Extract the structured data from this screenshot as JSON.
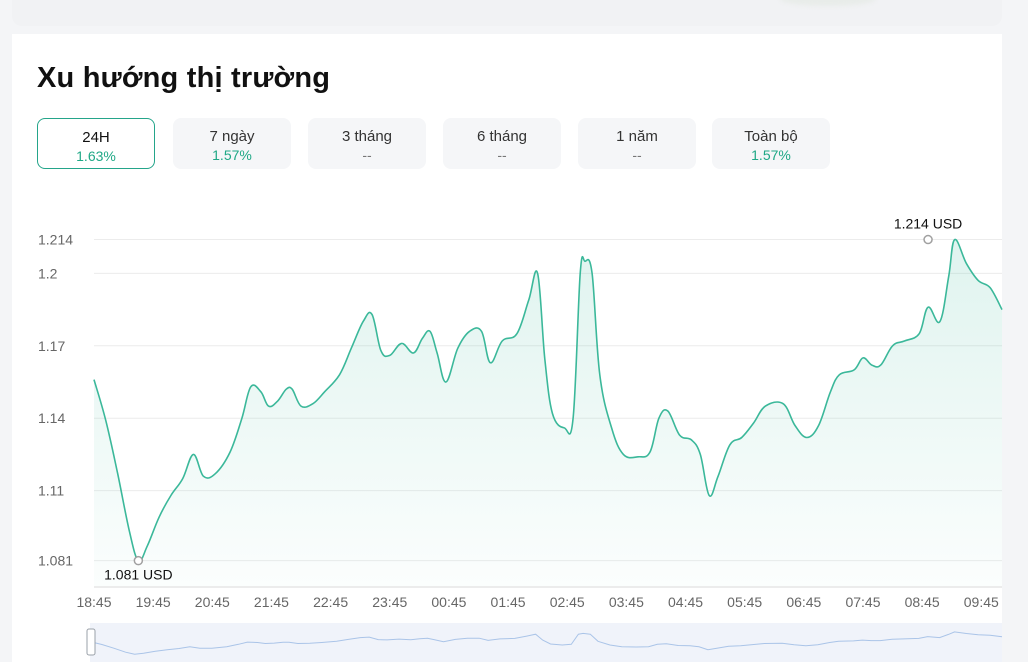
{
  "title": "Xu hướng thị trường",
  "tabs": [
    {
      "label": "24H",
      "value": "1.63%",
      "active": true
    },
    {
      "label": "7 ngày",
      "value": "1.57%",
      "active": false
    },
    {
      "label": "3 tháng",
      "value": "--",
      "active": false
    },
    {
      "label": "6 tháng",
      "value": "--",
      "active": false
    },
    {
      "label": "1 năm",
      "value": "--",
      "active": false
    },
    {
      "label": "Toàn bộ",
      "value": "1.57%",
      "active": false
    }
  ],
  "colors": {
    "accent": "#1fa886",
    "line": "#3bb89a",
    "grid": "#ececec",
    "navigator_line": "#aac4e8"
  },
  "chart_data": {
    "type": "area",
    "title": "",
    "xlabel": "",
    "ylabel": "",
    "y_ticks": [
      "1.214",
      "1.2",
      "1.17",
      "1.14",
      "1.11",
      "1.081"
    ],
    "y_tick_values": [
      1.214,
      1.2,
      1.17,
      1.14,
      1.11,
      1.081
    ],
    "ylim": [
      1.0705,
      1.225
    ],
    "xlim": [
      0,
      15.35
    ],
    "x_ticks": [
      "18:45",
      "19:45",
      "20:45",
      "21:45",
      "22:45",
      "23:45",
      "00:45",
      "01:45",
      "02:45",
      "03:45",
      "04:45",
      "05:45",
      "06:45",
      "07:45",
      "08:45",
      "09:45"
    ],
    "grid": true,
    "legend": "none",
    "max_label": "1.214 USD",
    "min_label": "1.081 USD",
    "max_point": {
      "x": 14.1,
      "y": 1.214
    },
    "min_point": {
      "x": 0.75,
      "y": 1.081
    },
    "points": [
      [
        0,
        1.156
      ],
      [
        0.2,
        1.139
      ],
      [
        0.4,
        1.117
      ],
      [
        0.6,
        1.093
      ],
      [
        0.75,
        1.081
      ],
      [
        0.9,
        1.087
      ],
      [
        1.1,
        1.099
      ],
      [
        1.3,
        1.108
      ],
      [
        1.5,
        1.115
      ],
      [
        1.68,
        1.125
      ],
      [
        1.85,
        1.116
      ],
      [
        2.05,
        1.117
      ],
      [
        2.3,
        1.126
      ],
      [
        2.5,
        1.14
      ],
      [
        2.65,
        1.153
      ],
      [
        2.82,
        1.151
      ],
      [
        2.95,
        1.145
      ],
      [
        3.1,
        1.147
      ],
      [
        3.25,
        1.152
      ],
      [
        3.35,
        1.152
      ],
      [
        3.5,
        1.145
      ],
      [
        3.7,
        1.146
      ],
      [
        3.9,
        1.151
      ],
      [
        4.15,
        1.158
      ],
      [
        4.35,
        1.169
      ],
      [
        4.55,
        1.18
      ],
      [
        4.7,
        1.183
      ],
      [
        4.85,
        1.168
      ],
      [
        5.0,
        1.166
      ],
      [
        5.2,
        1.171
      ],
      [
        5.4,
        1.167
      ],
      [
        5.55,
        1.173
      ],
      [
        5.68,
        1.176
      ],
      [
        5.8,
        1.167
      ],
      [
        5.95,
        1.155
      ],
      [
        6.15,
        1.169
      ],
      [
        6.35,
        1.176
      ],
      [
        6.55,
        1.176
      ],
      [
        6.7,
        1.163
      ],
      [
        6.9,
        1.172
      ],
      [
        7.15,
        1.175
      ],
      [
        7.35,
        1.189
      ],
      [
        7.5,
        1.2
      ],
      [
        7.62,
        1.165
      ],
      [
        7.75,
        1.142
      ],
      [
        7.95,
        1.136
      ],
      [
        8.1,
        1.14
      ],
      [
        8.22,
        1.2
      ],
      [
        8.3,
        1.205
      ],
      [
        8.42,
        1.2
      ],
      [
        8.55,
        1.158
      ],
      [
        8.75,
        1.136
      ],
      [
        8.95,
        1.125
      ],
      [
        9.2,
        1.124
      ],
      [
        9.4,
        1.126
      ],
      [
        9.55,
        1.14
      ],
      [
        9.7,
        1.143
      ],
      [
        9.9,
        1.133
      ],
      [
        10.1,
        1.131
      ],
      [
        10.25,
        1.125
      ],
      [
        10.4,
        1.108
      ],
      [
        10.55,
        1.116
      ],
      [
        10.75,
        1.129
      ],
      [
        10.95,
        1.132
      ],
      [
        11.15,
        1.138
      ],
      [
        11.35,
        1.145
      ],
      [
        11.65,
        1.146
      ],
      [
        11.85,
        1.137
      ],
      [
        12.05,
        1.132
      ],
      [
        12.25,
        1.137
      ],
      [
        12.45,
        1.151
      ],
      [
        12.6,
        1.158
      ],
      [
        12.85,
        1.16
      ],
      [
        13.0,
        1.165
      ],
      [
        13.15,
        1.162
      ],
      [
        13.3,
        1.162
      ],
      [
        13.5,
        1.17
      ],
      [
        13.7,
        1.172
      ],
      [
        13.95,
        1.175
      ],
      [
        14.1,
        1.186
      ],
      [
        14.3,
        1.18
      ],
      [
        14.45,
        1.199
      ],
      [
        14.55,
        1.214
      ],
      [
        14.75,
        1.204
      ],
      [
        14.95,
        1.197
      ],
      [
        15.15,
        1.194
      ],
      [
        15.35,
        1.185
      ]
    ]
  }
}
